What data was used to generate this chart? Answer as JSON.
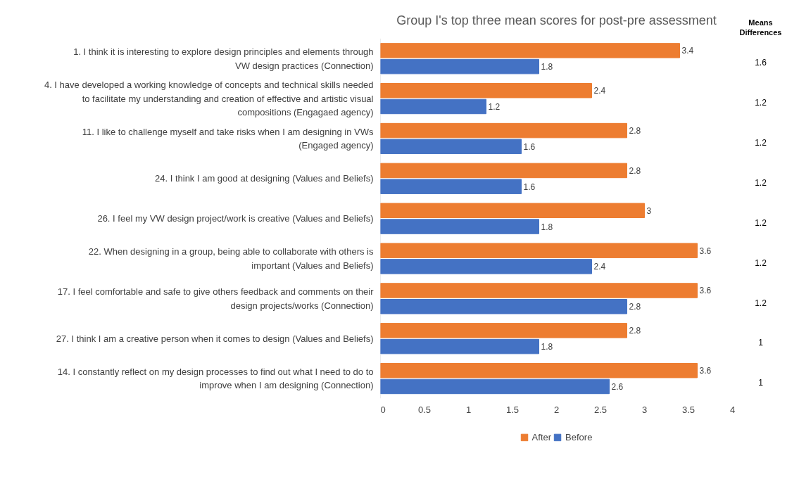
{
  "chart_data": {
    "type": "bar",
    "orientation": "horizontal",
    "title": "Group I's top three mean scores for post-pre assessment",
    "categories": [
      "1. I think it is interesting to explore design principles and elements through VW design practices (Connection)",
      "4. I have developed a working knowledge of concepts and technical skills needed to facilitate my understanding and creation of effective and artistic visual compositions (Engagaed agency)",
      "11. I like to challenge myself and take risks when I am designing in VWs (Engaged agency)",
      "24. I think I am good at designing (Values and Beliefs)",
      "26. I feel my VW design project/work is creative (Values and Beliefs)",
      "22. When designing in a group, being able to collaborate with others is important (Values and Beliefs)",
      "17. I feel comfortable and safe to give others feedback and comments on their design projects/works (Connection)",
      "27. I think I am a creative person when it comes to design (Values and Beliefs)",
      "14. I constantly reflect on my design processes to find out what I need to do to improve when I am designing (Connection)"
    ],
    "series": [
      {
        "name": "After",
        "color": "#ed7d31",
        "values": [
          3.4,
          2.4,
          2.8,
          2.8,
          3,
          3.6,
          3.6,
          2.8,
          3.6
        ]
      },
      {
        "name": "Before",
        "color": "#4472c4",
        "values": [
          1.8,
          1.2,
          1.6,
          1.6,
          1.8,
          2.4,
          2.8,
          1.8,
          2.6
        ]
      }
    ],
    "xlim": [
      0,
      4
    ],
    "xticks": [
      0,
      0.5,
      1,
      1.5,
      2,
      2.5,
      3,
      3.5,
      4
    ],
    "data_labels": true,
    "legend": "bottom",
    "annotations": [
      "Means Differences",
      "1.6",
      "1.2",
      "1.2",
      "1.2",
      "1.2",
      "1.2",
      "1.2",
      "1",
      "1"
    ]
  }
}
